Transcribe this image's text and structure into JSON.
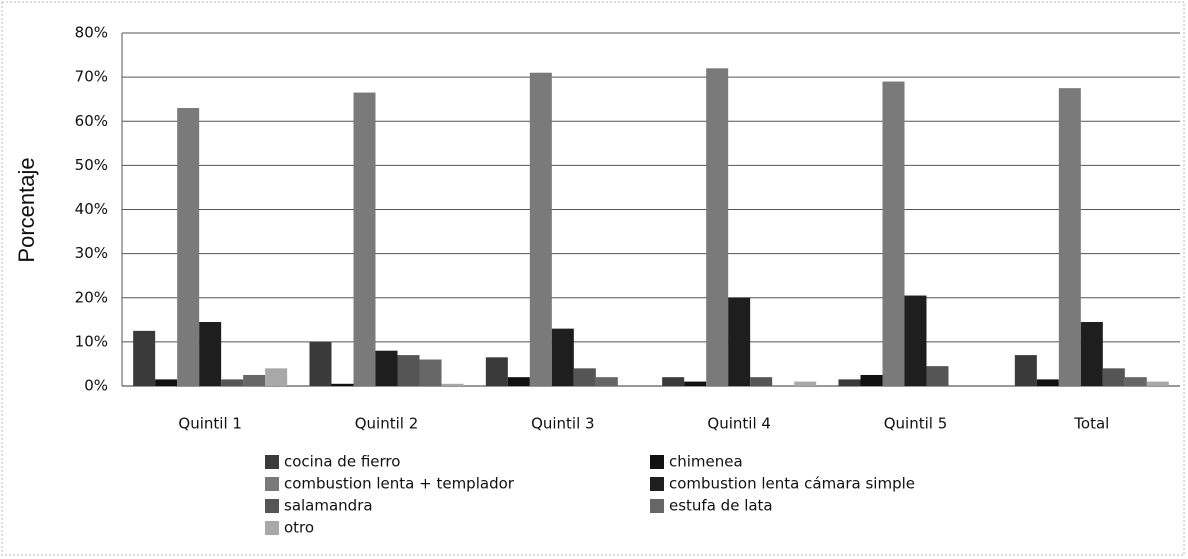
{
  "chart_data": {
    "type": "bar",
    "y_label": "Porcentaje",
    "categories": [
      "Quintil 1",
      "Quintil 2",
      "Quintil 3",
      "Quintil 4",
      "Quintil 5",
      "Total"
    ],
    "series": [
      {
        "name": "cocina de fierro",
        "color": "#3a3a3a",
        "values": [
          12.5,
          10,
          6.5,
          2,
          1.5,
          7
        ]
      },
      {
        "name": "chimenea",
        "color": "#111111",
        "values": [
          1.5,
          0.5,
          2,
          1,
          2.5,
          1.5
        ]
      },
      {
        "name": "combustion lenta + templador",
        "color": "#7a7a7a",
        "values": [
          63,
          66.5,
          71,
          72,
          69,
          67.5
        ]
      },
      {
        "name": "combustion lenta cámara simple",
        "color": "#1e1e1e",
        "values": [
          14.5,
          8,
          13,
          20,
          20.5,
          14.5
        ]
      },
      {
        "name": "salamandra",
        "color": "#555555",
        "values": [
          1.5,
          7,
          4,
          2,
          4.5,
          4
        ]
      },
      {
        "name": "estufa de lata",
        "color": "#666666",
        "values": [
          2.5,
          6,
          2,
          0,
          0,
          2
        ]
      },
      {
        "name": "otro",
        "color": "#a8a8a8",
        "values": [
          4,
          0.5,
          0,
          1,
          0,
          1
        ]
      }
    ],
    "ylim": [
      0,
      80
    ],
    "yticks": [
      {
        "value": 0,
        "label": "0%"
      },
      {
        "value": 10,
        "label": "10%"
      },
      {
        "value": 20,
        "label": "20%"
      },
      {
        "value": 30,
        "label": "30%"
      },
      {
        "value": 40,
        "label": "40%"
      },
      {
        "value": 50,
        "label": "50%"
      },
      {
        "value": 60,
        "label": "60%"
      },
      {
        "value": 70,
        "label": "70%"
      },
      {
        "value": 80,
        "label": "80%"
      }
    ],
    "grid": true
  }
}
